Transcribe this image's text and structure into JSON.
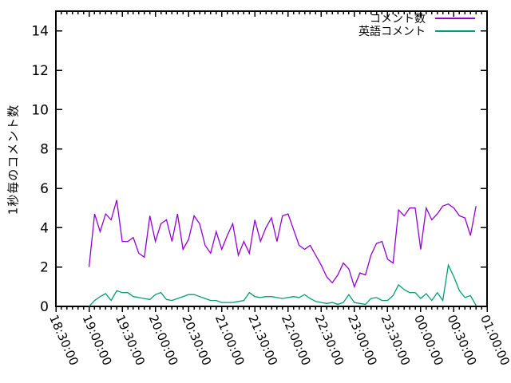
{
  "figure": {
    "background": "#ffffff",
    "axis_color": "#000000",
    "text_color": "#000000"
  },
  "chart_data": {
    "type": "line",
    "title": "",
    "xlabel": "",
    "ylabel": "1秒毎のコメント数",
    "ylim": [
      0,
      15
    ],
    "y_ticks": [
      0,
      2,
      4,
      6,
      8,
      10,
      12,
      14
    ],
    "x_ticks": [
      "18:30:00",
      "19:00:00",
      "19:30:00",
      "20:00:00",
      "20:30:00",
      "21:00:00",
      "21:30:00",
      "22:00:00",
      "22:30:00",
      "23:00:00",
      "23:30:00",
      "00:00:00",
      "00:30:00",
      "01:00:00"
    ],
    "x_major_tick_minutes": 30,
    "x_minor_tick_minutes": 5,
    "x_tick_rotation_deg": 66,
    "grid": false,
    "legend_position": "top-right-inside",
    "x": [
      "19:00:00",
      "19:05:00",
      "19:10:00",
      "19:15:00",
      "19:20:00",
      "19:25:00",
      "19:30:00",
      "19:35:00",
      "19:40:00",
      "19:45:00",
      "19:50:00",
      "19:55:00",
      "20:00:00",
      "20:05:00",
      "20:10:00",
      "20:15:00",
      "20:20:00",
      "20:25:00",
      "20:30:00",
      "20:35:00",
      "20:40:00",
      "20:45:00",
      "20:50:00",
      "20:55:00",
      "21:00:00",
      "21:05:00",
      "21:10:00",
      "21:15:00",
      "21:20:00",
      "21:25:00",
      "21:30:00",
      "21:35:00",
      "21:40:00",
      "21:45:00",
      "21:50:00",
      "21:55:00",
      "22:00:00",
      "22:05:00",
      "22:10:00",
      "22:15:00",
      "22:20:00",
      "22:25:00",
      "22:30:00",
      "22:35:00",
      "22:40:00",
      "22:45:00",
      "22:50:00",
      "22:55:00",
      "23:00:00",
      "23:05:00",
      "23:10:00",
      "23:15:00",
      "23:20:00",
      "23:25:00",
      "23:30:00",
      "23:35:00",
      "23:40:00",
      "23:45:00",
      "23:50:00",
      "23:55:00",
      "00:00:00",
      "00:05:00",
      "00:10:00",
      "00:15:00",
      "00:20:00",
      "00:25:00",
      "00:30:00",
      "00:35:00",
      "00:40:00",
      "00:45:00",
      "00:50:00"
    ],
    "series": [
      {
        "name": "コメント数",
        "color": "#9400d3",
        "values": [
          2.0,
          4.7,
          3.8,
          4.7,
          4.4,
          5.4,
          3.3,
          3.3,
          3.5,
          2.7,
          2.5,
          4.6,
          3.3,
          4.2,
          4.4,
          3.3,
          4.7,
          2.9,
          3.4,
          4.6,
          4.2,
          3.1,
          2.7,
          3.8,
          2.9,
          3.6,
          4.2,
          2.6,
          3.3,
          2.7,
          4.4,
          3.3,
          4.0,
          4.5,
          3.3,
          4.6,
          4.7,
          3.9,
          3.1,
          2.9,
          3.1,
          2.6,
          2.1,
          1.5,
          1.2,
          1.6,
          2.2,
          1.9,
          1.0,
          1.7,
          1.6,
          2.6,
          3.2,
          3.3,
          2.4,
          2.2,
          4.9,
          4.6,
          5.0,
          5.0,
          2.9,
          5.0,
          4.4,
          4.7,
          5.1,
          5.2,
          5.0,
          4.6,
          4.5,
          3.6,
          5.1
        ]
      },
      {
        "name": "英語コメント",
        "color": "#009e73",
        "values": [
          0.0,
          0.3,
          0.5,
          0.65,
          0.3,
          0.8,
          0.7,
          0.7,
          0.5,
          0.45,
          0.4,
          0.35,
          0.6,
          0.7,
          0.35,
          0.3,
          0.4,
          0.5,
          0.6,
          0.6,
          0.5,
          0.4,
          0.3,
          0.3,
          0.2,
          0.2,
          0.2,
          0.25,
          0.3,
          0.7,
          0.5,
          0.45,
          0.5,
          0.5,
          0.45,
          0.4,
          0.45,
          0.5,
          0.45,
          0.6,
          0.4,
          0.25,
          0.2,
          0.15,
          0.2,
          0.1,
          0.2,
          0.6,
          0.2,
          0.15,
          0.1,
          0.4,
          0.45,
          0.3,
          0.3,
          0.55,
          1.1,
          0.85,
          0.7,
          0.7,
          0.4,
          0.65,
          0.3,
          0.7,
          0.3,
          2.1,
          1.5,
          0.8,
          0.45,
          0.55,
          0.05
        ]
      }
    ]
  }
}
